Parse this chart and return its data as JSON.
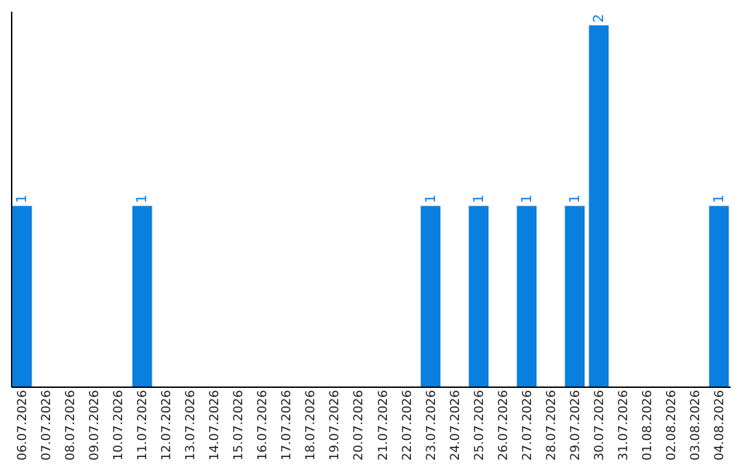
{
  "chart_data": {
    "type": "bar",
    "categories": [
      "06.07.2026",
      "07.07.2026",
      "08.07.2026",
      "09.07.2026",
      "10.07.2026",
      "11.07.2026",
      "12.07.2026",
      "13.07.2026",
      "14.07.2026",
      "15.07.2026",
      "16.07.2026",
      "17.07.2026",
      "18.07.2026",
      "19.07.2026",
      "20.07.2026",
      "21.07.2026",
      "22.07.2026",
      "23.07.2026",
      "24.07.2026",
      "25.07.2026",
      "26.07.2026",
      "27.07.2026",
      "28.07.2026",
      "29.07.2026",
      "30.07.2026",
      "31.07.2026",
      "01.08.2026",
      "02.08.2026",
      "03.08.2026",
      "04.08.2026"
    ],
    "values": [
      1,
      0,
      0,
      0,
      0,
      1,
      0,
      0,
      0,
      0,
      0,
      0,
      0,
      0,
      0,
      0,
      0,
      1,
      0,
      1,
      0,
      1,
      0,
      1,
      2,
      0,
      0,
      0,
      0,
      1
    ],
    "value_labels": [
      "1",
      null,
      null,
      null,
      null,
      "1",
      null,
      null,
      null,
      null,
      null,
      null,
      null,
      null,
      null,
      null,
      null,
      "1",
      null,
      "1",
      null,
      "1",
      null,
      "1",
      "2",
      null,
      null,
      null,
      null,
      "1"
    ],
    "color": "#0a7fe0",
    "ylim": [
      0,
      2.08
    ],
    "tick_labels": "x",
    "grid": false
  }
}
